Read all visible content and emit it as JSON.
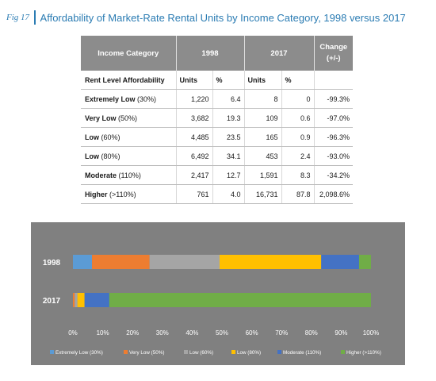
{
  "header": {
    "fig_label": "Fig 17",
    "title": "Affordability of Market-Rate Rental Units by Income Category, 1998 versus 2017"
  },
  "table": {
    "col_headers": {
      "category": "Income Category",
      "y1998": "1998",
      "y2017": "2017",
      "change_line1": "Change",
      "change_line2": "(+/-)"
    },
    "sub_header": {
      "label": "Rent Level Affordability",
      "units_1998": "Units",
      "pct_1998": "%",
      "units_2017": "Units",
      "pct_2017": "%"
    },
    "rows": [
      {
        "name": "Extremely Low",
        "range": "(30%)",
        "u1998": "1,220",
        "p1998": "6.4",
        "u2017": "8",
        "p2017": "0",
        "change": "-99.3%"
      },
      {
        "name": "Very Low",
        "range": "(50%)",
        "u1998": "3,682",
        "p1998": "19.3",
        "u2017": "109",
        "p2017": "0.6",
        "change": "-97.0%"
      },
      {
        "name": "Low",
        "range": "(60%)",
        "u1998": "4,485",
        "p1998": "23.5",
        "u2017": "165",
        "p2017": "0.9",
        "change": "-96.3%"
      },
      {
        "name": "Low",
        "range": "(80%)",
        "u1998": "6,492",
        "p1998": "34.1",
        "u2017": "453",
        "p2017": "2.4",
        "change": "-93.0%"
      },
      {
        "name": "Moderate",
        "range": "(110%)",
        "u1998": "2,417",
        "p1998": "12.7",
        "u2017": "1,591",
        "p2017": "8.3",
        "change": "-34.2%"
      },
      {
        "name": "Higher",
        "range": "(>110%)",
        "u1998": "761",
        "p1998": "4.0",
        "u2017": "16,731",
        "p2017": "87.8",
        "change": "2,098.6%"
      }
    ]
  },
  "chart_data": {
    "type": "bar",
    "orientation": "horizontal",
    "stacked": true,
    "percent_stacked": true,
    "categories": [
      "1998",
      "2017"
    ],
    "series": [
      {
        "name": "Extremely Low (30%)",
        "values": [
          6.4,
          0
        ],
        "color": "#5b9bd5"
      },
      {
        "name": "Very Low (50%)",
        "values": [
          19.3,
          0.6
        ],
        "color": "#ed7d31"
      },
      {
        "name": "Low (60%)",
        "values": [
          23.5,
          0.9
        ],
        "color": "#a5a5a5"
      },
      {
        "name": "Low (80%)",
        "values": [
          34.1,
          2.4
        ],
        "color": "#ffc000"
      },
      {
        "name": "Moderate (110%)",
        "values": [
          12.7,
          8.3
        ],
        "color": "#4472c4"
      },
      {
        "name": "Higher (>110%)",
        "values": [
          4.0,
          87.8
        ],
        "color": "#70ad47"
      }
    ],
    "x_ticks": [
      "0%",
      "10%",
      "20%",
      "30%",
      "40%",
      "50%",
      "60%",
      "70%",
      "80%",
      "90%",
      "100%"
    ],
    "xlim": [
      0,
      100
    ],
    "legend_position": "bottom",
    "background": "#808080"
  }
}
